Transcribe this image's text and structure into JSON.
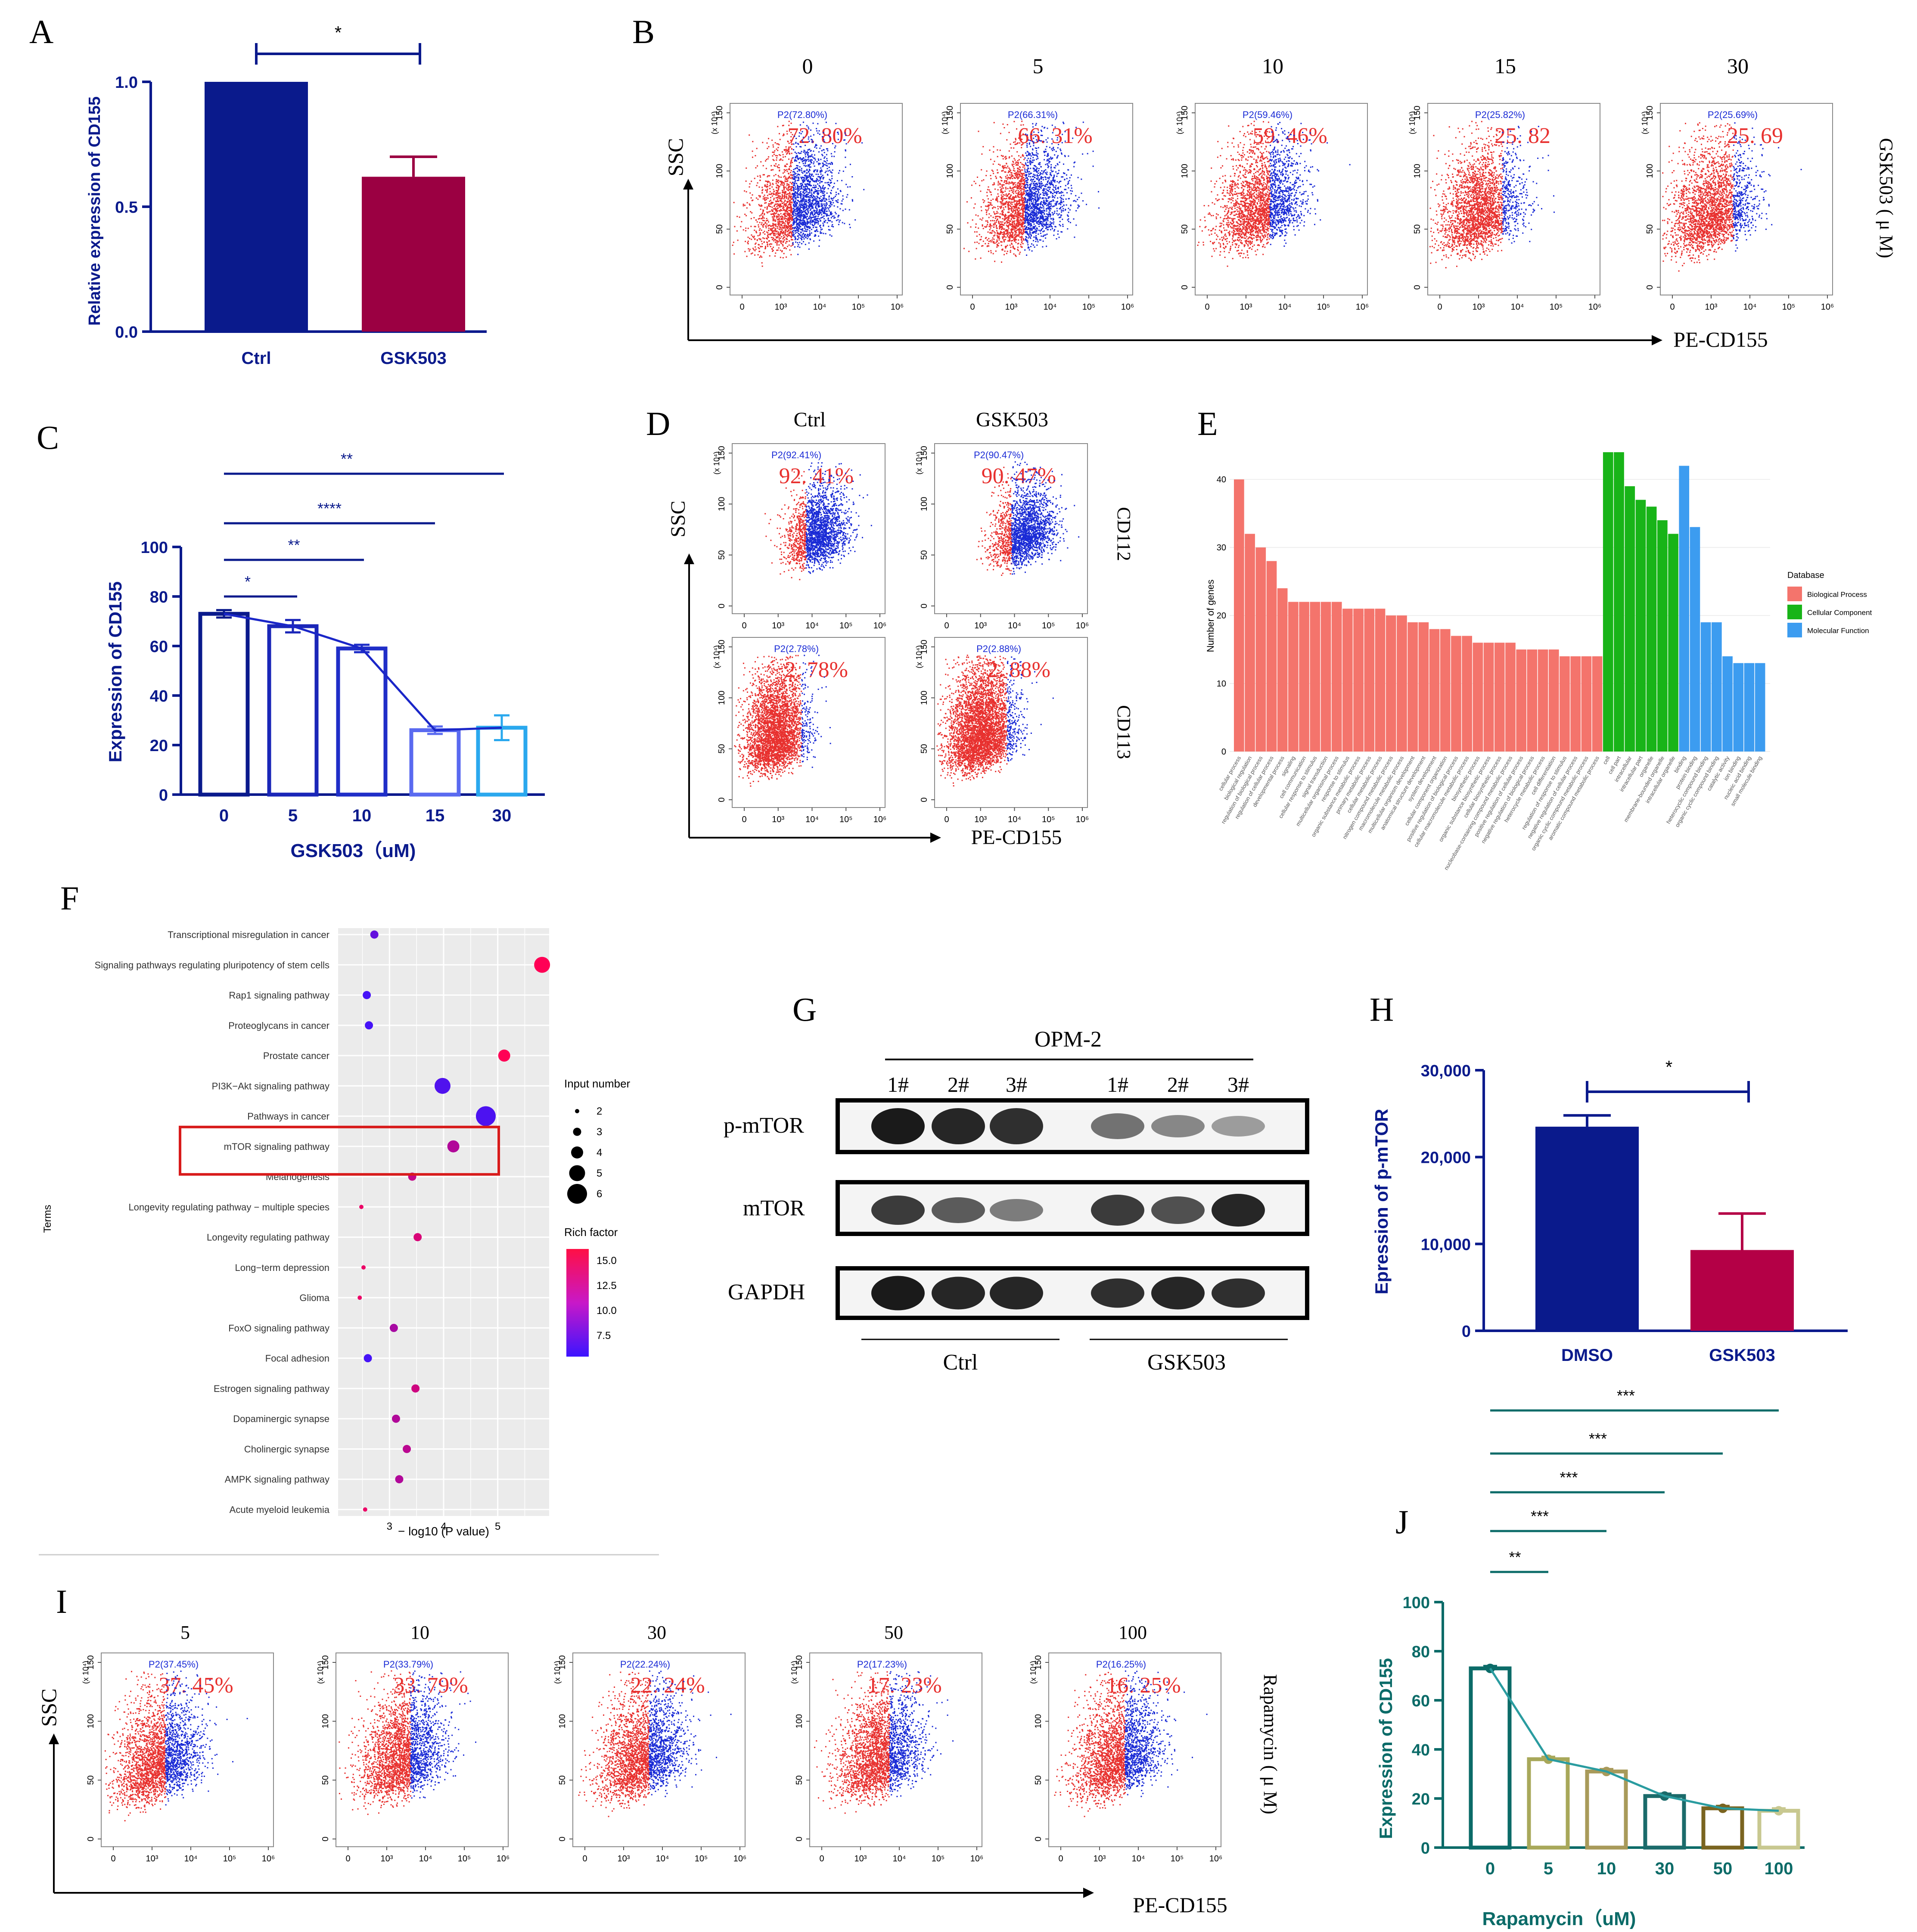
{
  "panels": {
    "A": "A",
    "B": "B",
    "C": "C",
    "D": "D",
    "E": "E",
    "F": "F",
    "G": "G",
    "H": "H",
    "I": "I",
    "J": "J"
  },
  "colors": {
    "navy": "#0a1a8c",
    "crimson": "#9b0042",
    "teal": "#0b6b68",
    "red": "#e8312f",
    "blue_dot": "#1a2bd6",
    "bp": "#f4746c",
    "cc": "#18b418",
    "mf": "#3c9cf0"
  },
  "panel_a": {
    "type": "bar",
    "categories": [
      "Ctrl",
      "GSK503"
    ],
    "values": [
      1.0,
      0.62
    ],
    "errors": [
      0,
      0.08
    ],
    "ylabel": "Relative expression of CD155",
    "ylim": [
      0,
      1.0
    ],
    "yticks": [
      "0.0",
      "0.5",
      "1.0"
    ],
    "significance": "*"
  },
  "panel_b": {
    "conditions": [
      "0",
      "5",
      "10",
      "15",
      "30"
    ],
    "gate_labels": [
      "P2(72.80%)",
      "P2(66.31%)",
      "P2(59.46%)",
      "P2(25.82%)",
      "P2(25.69%)"
    ],
    "percent_text": [
      "72. 80%",
      "66. 31%",
      "59. 46%",
      "25. 82",
      "25. 69"
    ],
    "side_label": "GSK503 ( μ M)",
    "yaxis": "SSC",
    "xaxis": "PE-CD155",
    "scale": "(x 10⁴)",
    "yticks": [
      "0",
      "50",
      "100",
      "150"
    ],
    "xticks": [
      "0",
      "10³",
      "10⁴",
      "10⁵",
      "10⁶"
    ]
  },
  "panel_c": {
    "type": "bar",
    "categories": [
      "0",
      "5",
      "10",
      "15",
      "30"
    ],
    "values": [
      73,
      68,
      59,
      26,
      27
    ],
    "errors": [
      1.5,
      2.5,
      1.5,
      1.5,
      5
    ],
    "ylabel": "Expression of CD155",
    "xlabel": "GSK503（uM)",
    "ylim": [
      0,
      100
    ],
    "yticks": [
      "0",
      "20",
      "40",
      "60",
      "80",
      "100"
    ],
    "significance": [
      "*",
      "**",
      "****",
      "**"
    ]
  },
  "panel_d": {
    "columns": [
      "Ctrl",
      "GSK503"
    ],
    "rows": [
      "CD112",
      "CD113"
    ],
    "gate_labels": [
      "P2(92.41%)",
      "P2(90.47%)",
      "P2(2.78%)",
      "P2(2.88%)"
    ],
    "percent_text": [
      "92. 41%",
      "90. 47%",
      "2. 78%",
      "2. 88%"
    ],
    "yaxis": "SSC",
    "xaxis": "PE-CD155"
  },
  "panel_e": {
    "type": "bar",
    "ylabel": "Number of genes",
    "yticks": [
      "0",
      "10",
      "20",
      "30",
      "40"
    ],
    "ylim": [
      0,
      44
    ],
    "legend_title": "Database",
    "legend": [
      "Biological Process",
      "Cellular Component",
      "Molecular Function"
    ],
    "bp_values": [
      40,
      32,
      30,
      28,
      24,
      22,
      22,
      22,
      22,
      22,
      21,
      21,
      21,
      21,
      20,
      20,
      19,
      19,
      18,
      18,
      17,
      17,
      16,
      16,
      16,
      16,
      15,
      15,
      15,
      15,
      14,
      14,
      14,
      14
    ],
    "cc_values": [
      44,
      44,
      39,
      37,
      36,
      34,
      32
    ],
    "mf_values": [
      42,
      33,
      19,
      19,
      14,
      13,
      13,
      13
    ],
    "bp_terms": [
      "cellular process",
      "biological regulation",
      "regulation of biological process",
      "regulation of cellular process",
      "developmental process",
      "signaling",
      "cell communication",
      "cellular response to stimulus",
      "signal transduction",
      "multicellular organismal process",
      "response to stimulus",
      "organic substance metabolic process",
      "primary metabolic process",
      "cellular metabolic process",
      "nitrogen compound metabolic process",
      "macromolecule metabolic process",
      "multicellular organism development",
      "anatomical structure development",
      "system development",
      "cellular component organization",
      "positive regulation of biological process",
      "cellular macromolecule metabolic process",
      "biosynthetic process",
      "organic substance biosynthetic process",
      "cellular biosynthetic process",
      "nucleobase-containing compound metabolic process",
      "positive regulation of cellular process",
      "negative regulation of biological process",
      "heterocycle metabolic process",
      "cell differentiation",
      "regulation of response to stimulus",
      "negative regulation of cellular process",
      "organic cyclic compound metabolic process",
      "aromatic compound metabolic process"
    ],
    "cc_terms": [
      "cell",
      "cell part",
      "intracellular",
      "intracellular part",
      "organelle",
      "membrane-bounded organelle",
      "intracellular organelle"
    ],
    "mf_terms": [
      "binding",
      "protein binding",
      "heterocyclic compound binding",
      "organic cyclic compound binding",
      "catalytic activity",
      "ion binding",
      "nucleic acid binding",
      "small molecule binding"
    ]
  },
  "panel_f": {
    "type": "scatter",
    "ylabel": "Terms",
    "xlabel": "− log10 (P value)",
    "xticks": [
      "3",
      "4",
      "5"
    ],
    "xlim": [
      2.05,
      5.95
    ],
    "size_title": "Input number",
    "size_values": [
      "2",
      "3",
      "4",
      "5",
      "6"
    ],
    "color_title": "Rich factor",
    "color_values": [
      "15.0",
      "12.5",
      "10.0",
      "7.5"
    ],
    "terms": [
      "Transcriptional misregulation in cancer",
      "Signaling pathways regulating pluripotency of stem cells",
      "Rap1 signaling pathway",
      "Proteoglycans in cancer",
      "Prostate cancer",
      "PI3K−Akt signaling pathway",
      "Pathways in cancer",
      "mTOR signaling pathway",
      "Melanogenesis",
      "Longevity regulating pathway − multiple species",
      "Longevity regulating pathway",
      "Long−term depression",
      "Glioma",
      "FoxO signaling pathway",
      "Focal adhesion",
      "Estrogen signaling pathway",
      "Dopaminergic synapse",
      "Cholinergic synapse",
      "AMPK signaling pathway",
      "Acute myeloid leukemia"
    ],
    "x": [
      2.72,
      5.82,
      2.58,
      2.62,
      5.12,
      3.98,
      4.78,
      4.18,
      3.42,
      2.48,
      3.52,
      2.52,
      2.45,
      3.08,
      2.6,
      3.48,
      3.12,
      3.32,
      3.18,
      2.55
    ],
    "size": [
      3,
      5,
      3,
      3,
      4,
      5,
      6,
      4,
      3,
      2,
      3,
      2,
      2,
      3,
      3,
      3,
      3,
      3,
      3,
      2
    ],
    "rich": [
      8.0,
      16.0,
      6.5,
      6.5,
      16.0,
      7.0,
      6.8,
      12.0,
      13.0,
      15.0,
      14.0,
      15.0,
      15.0,
      11.5,
      6.5,
      13.5,
      12.0,
      12.5,
      12.0,
      15.0
    ],
    "highlight": "mTOR signaling pathway"
  },
  "panel_g": {
    "group_title": "OPM-2",
    "lanes": [
      "1#",
      "2#",
      "3#",
      "1#",
      "2#",
      "3#"
    ],
    "rows": [
      "p-mTOR",
      "mTOR",
      "GAPDH"
    ],
    "groups": [
      "Ctrl",
      "GSK503"
    ]
  },
  "panel_h": {
    "type": "bar",
    "categories": [
      "DMSO",
      "GSK503"
    ],
    "values": [
      23500,
      9300
    ],
    "errors": [
      1300,
      4200
    ],
    "ylabel": "Epression of p-mTOR",
    "ylim": [
      0,
      30000
    ],
    "yticks": [
      "0",
      "10,000",
      "20,000",
      "30,000"
    ],
    "significance": "*"
  },
  "panel_i": {
    "conditions": [
      "5",
      "10",
      "30",
      "50",
      "100"
    ],
    "gate_labels": [
      "P2(37.45%)",
      "P2(33.79%)",
      "P2(22.24%)",
      "P2(17.23%)",
      "P2(16.25%)"
    ],
    "percent_text": [
      "37. 45%",
      "33. 79%",
      "22. 24%",
      "17. 23%",
      "16. 25%"
    ],
    "side_label": "Rapamycin ( μ M)",
    "yaxis": "SSC",
    "xaxis": "PE-CD155"
  },
  "panel_j": {
    "type": "bar",
    "categories": [
      "0",
      "5",
      "10",
      "30",
      "50",
      "100"
    ],
    "values": [
      73,
      36,
      31,
      21,
      16,
      15
    ],
    "errors": [
      1,
      1,
      1,
      1,
      1,
      1
    ],
    "ylabel": "Expression of CD155",
    "xlabel": "Rapamycin（uM)",
    "ylim": [
      0,
      100
    ],
    "yticks": [
      "0",
      "20",
      "40",
      "60",
      "80",
      "100"
    ],
    "significance": [
      "**",
      "***",
      "***",
      "***",
      "***"
    ]
  }
}
